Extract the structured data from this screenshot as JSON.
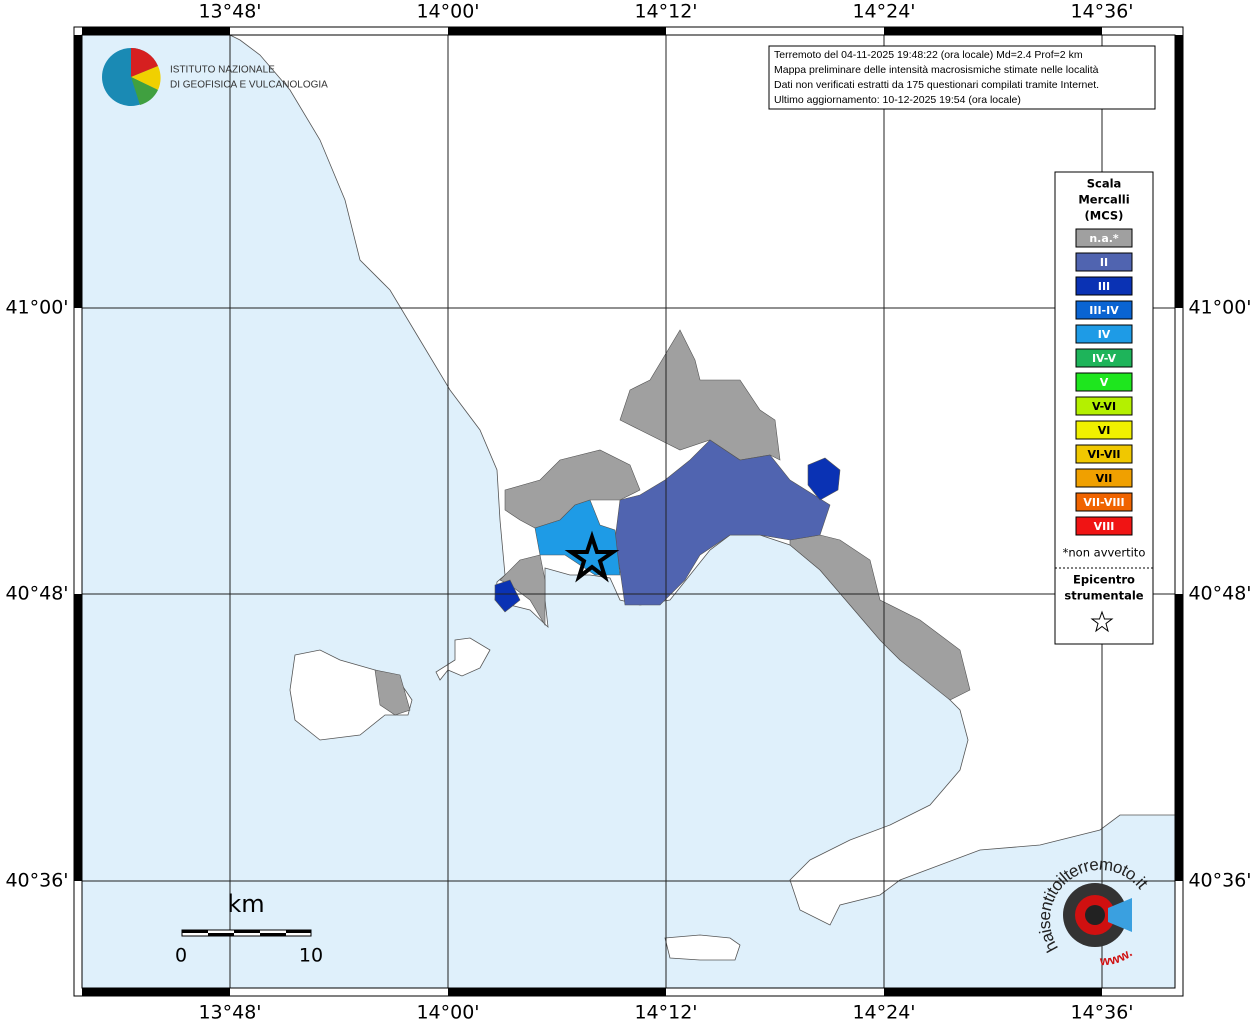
{
  "map": {
    "lon_labels": [
      "13°48'",
      "14°00'",
      "14°12'",
      "14°24'",
      "14°36'"
    ],
    "lat_labels": [
      "41°00'",
      "40°48'",
      "40°36'"
    ],
    "info_box": {
      "lines": [
        "Terremoto del 04-11-2025 19:48:22 (ora locale) Md=2.4 Prof=2 km",
        "Mappa preliminare delle intensità macrosismiche stimate nelle località",
        "Dati non verificati estratti da 175 questionari compilati tramite Internet.",
        "Ultimo aggiornamento: 10-12-2025 19:54 (ora locale)"
      ]
    },
    "legend": {
      "title_lines": [
        "Scala",
        "Mercalli",
        "(MCS)"
      ],
      "items": [
        {
          "label": "n.a.*",
          "color": "#a0a0a0"
        },
        {
          "label": "II",
          "color": "#5064b0"
        },
        {
          "label": "III",
          "color": "#0a32b4"
        },
        {
          "label": "III-IV",
          "color": "#0a64d2"
        },
        {
          "label": "IV",
          "color": "#1e9be6"
        },
        {
          "label": "IV-V",
          "color": "#1eb45a"
        },
        {
          "label": "V",
          "color": "#1ee61e"
        },
        {
          "label": "V-VI",
          "color": "#b4f000"
        },
        {
          "label": "VI",
          "color": "#f0f000"
        },
        {
          "label": "VI-VII",
          "color": "#f0c800"
        },
        {
          "label": "VII",
          "color": "#f0a000"
        },
        {
          "label": "VII-VIII",
          "color": "#f06400"
        },
        {
          "label": "VIII",
          "color": "#f01414"
        }
      ],
      "note": "*non avvertito",
      "epicenter_lines": [
        "Epicentro",
        "strumentale"
      ]
    },
    "scale_bar": {
      "unit": "km",
      "labels": [
        "0",
        "10"
      ]
    },
    "logos": {
      "ingv": [
        "ISTITUTO NAZIONALE",
        "DI GEOFISICA E VULCANOLOGIA"
      ],
      "hst": [
        "haisentitoilterremoto.it",
        "www."
      ]
    }
  }
}
